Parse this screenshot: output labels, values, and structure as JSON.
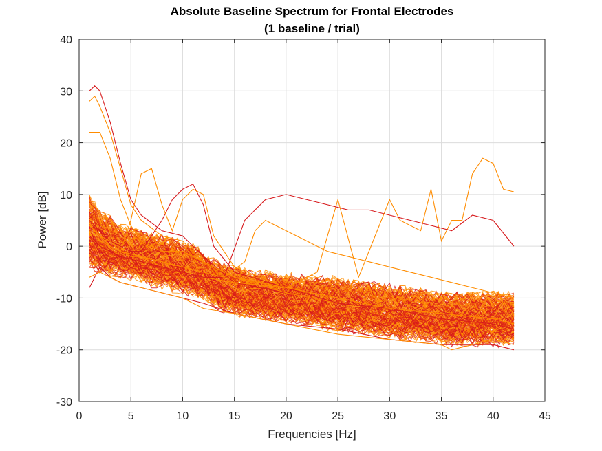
{
  "chart_data": {
    "type": "line",
    "title": "Absolute Baseline Spectrum for Frontal Electrodes",
    "subtitle": "(1 baseline / trial)",
    "xlabel": "Frequencies [Hz]",
    "ylabel": "Power [dB]",
    "xlim": [
      0,
      45
    ],
    "ylim": [
      -30,
      40
    ],
    "xticks": [
      0,
      5,
      10,
      15,
      20,
      25,
      30,
      35,
      40,
      45
    ],
    "yticks": [
      -30,
      -20,
      -10,
      0,
      10,
      20,
      30,
      40
    ],
    "x_tick_labels": [
      "0",
      "5",
      "10",
      "15",
      "20",
      "25",
      "30",
      "35",
      "40",
      "45"
    ],
    "y_tick_labels": [
      "-30",
      "-20",
      "-10",
      "0",
      "10",
      "20",
      "30",
      "40"
    ],
    "grid": true,
    "series_colors": [
      "#d7191c",
      "#ff8c00",
      "#ff9a1a",
      "#e83a10"
    ],
    "series": [
      {
        "color": "#d7191c",
        "x": [
          1,
          1.5,
          2,
          3,
          4,
          5,
          6,
          8,
          10,
          12,
          15,
          20,
          25,
          30,
          35,
          40,
          42
        ],
        "y": [
          30,
          31,
          30,
          24,
          16,
          9,
          6,
          3,
          2,
          -2,
          -7,
          -9,
          -11,
          -12,
          -13,
          -14,
          -15
        ]
      },
      {
        "color": "#ff8c00",
        "x": [
          1,
          1.5,
          2,
          3,
          4,
          5,
          6,
          8,
          10,
          12,
          15,
          20,
          25,
          30,
          35,
          40,
          42
        ],
        "y": [
          28,
          29,
          27,
          22,
          15,
          8,
          5,
          2,
          1,
          -3,
          -6,
          -8,
          -10,
          -12,
          -13,
          -14,
          -15
        ]
      },
      {
        "color": "#ff8c00",
        "x": [
          1,
          2,
          3,
          4,
          5,
          6,
          7,
          8,
          10,
          12,
          15,
          20,
          25,
          30,
          35,
          40,
          42
        ],
        "y": [
          22,
          22,
          17,
          9,
          4,
          1,
          0,
          -1,
          -1,
          -3,
          -6,
          -9,
          -11,
          -12,
          -14,
          -15,
          -16
        ]
      },
      {
        "color": "#ff8c00",
        "x": [
          1,
          2,
          3,
          4,
          5,
          6,
          7,
          8,
          10,
          12,
          15,
          20,
          23,
          25,
          27,
          30,
          31,
          33,
          34,
          35,
          36,
          37,
          38,
          39,
          40,
          41,
          42
        ],
        "y": [
          4,
          2,
          0,
          -1,
          -2,
          -2,
          -3,
          -4,
          -5,
          -6,
          -7,
          -8,
          -5,
          9,
          -6,
          9,
          5,
          3,
          11,
          1,
          5,
          5,
          14,
          17,
          16,
          11,
          10.5
        ]
      },
      {
        "color": "#d7191c",
        "x": [
          1,
          2,
          4,
          6,
          8,
          10,
          12,
          14,
          16,
          18,
          20,
          22,
          24,
          26,
          28,
          30,
          32,
          34,
          36,
          38,
          40,
          42
        ],
        "y": [
          2,
          0,
          -2,
          -3,
          -4,
          -5,
          -6,
          -6,
          5,
          9,
          10,
          9,
          8,
          7,
          7,
          6,
          5,
          4,
          3,
          6,
          5,
          0
        ]
      },
      {
        "color": "#ff8c00",
        "x": [
          1,
          2,
          4,
          6,
          8,
          10,
          12,
          14,
          16,
          17,
          18,
          20,
          22,
          24,
          26,
          28,
          30,
          32,
          34,
          36,
          38,
          40,
          42
        ],
        "y": [
          3,
          1,
          -1,
          -2,
          -3,
          -4,
          -5,
          -6,
          -3,
          3,
          5,
          3,
          1,
          -1,
          -2,
          -3,
          -4,
          -5,
          -6,
          -7,
          -8,
          -9,
          -10
        ]
      },
      {
        "color": "#d7191c",
        "x": [
          1,
          2,
          3,
          4,
          5,
          6,
          7,
          8,
          9,
          10,
          11,
          12,
          13,
          15,
          20,
          25,
          30,
          35,
          40,
          42
        ],
        "y": [
          5,
          3,
          1,
          0,
          -1,
          -1,
          2,
          5,
          9,
          11,
          12,
          8,
          0,
          -5,
          -8,
          -11,
          -12,
          -14,
          -15,
          -16
        ]
      },
      {
        "color": "#ff8c00",
        "x": [
          1,
          2,
          3,
          4,
          5,
          6,
          7,
          8,
          9,
          10,
          11,
          12,
          13,
          15,
          20,
          25,
          30,
          35,
          40,
          42
        ],
        "y": [
          4,
          2,
          1,
          -1,
          5,
          14,
          15,
          8,
          3,
          9,
          11,
          10,
          2,
          -4,
          -8,
          -10,
          -12,
          -13,
          -14,
          -15
        ]
      },
      {
        "color": "#d7191c",
        "x": [
          1,
          2,
          3,
          4,
          6,
          8,
          10,
          12,
          15,
          20,
          25,
          30,
          35,
          40,
          42
        ],
        "y": [
          -8,
          -4,
          -6,
          -7,
          -8,
          -9,
          -10,
          -11,
          -13,
          -15,
          -16,
          -18,
          -19,
          -19,
          -20
        ]
      },
      {
        "color": "#ff8c00",
        "x": [
          1,
          2,
          3,
          4,
          6,
          8,
          10,
          12,
          15,
          20,
          25,
          30,
          35,
          36,
          40,
          42
        ],
        "y": [
          -6,
          -5,
          -6,
          -7,
          -8,
          -9,
          -10,
          -12,
          -13,
          -15,
          -17,
          -18,
          -19,
          -20,
          -18,
          -19
        ]
      }
    ],
    "band": {
      "description": "dense bundle of orange and red trial spectra",
      "x": [
        1,
        2,
        3,
        4,
        5,
        6,
        7,
        8,
        9,
        10,
        11,
        12,
        13,
        14,
        15,
        16,
        18,
        20,
        22,
        24,
        26,
        28,
        30,
        32,
        34,
        36,
        38,
        40,
        42
      ],
      "center": [
        3,
        1,
        0,
        -1,
        -1.5,
        -2,
        -2.5,
        -3,
        -3.5,
        -4,
        -4.5,
        -5.5,
        -7,
        -8,
        -8.5,
        -9,
        -9.5,
        -10,
        -10.5,
        -11,
        -11.5,
        -12,
        -12.5,
        -13,
        -13.5,
        -14,
        -14,
        -14,
        -14
      ],
      "spread": [
        6,
        5,
        4.5,
        4,
        4,
        4,
        4,
        4,
        4,
        4,
        4,
        3.5,
        3.5,
        3.5,
        3.5,
        3.5,
        3.5,
        3.5,
        3.5,
        4,
        4,
        4,
        4,
        4,
        4,
        4,
        4,
        4,
        4
      ]
    }
  }
}
